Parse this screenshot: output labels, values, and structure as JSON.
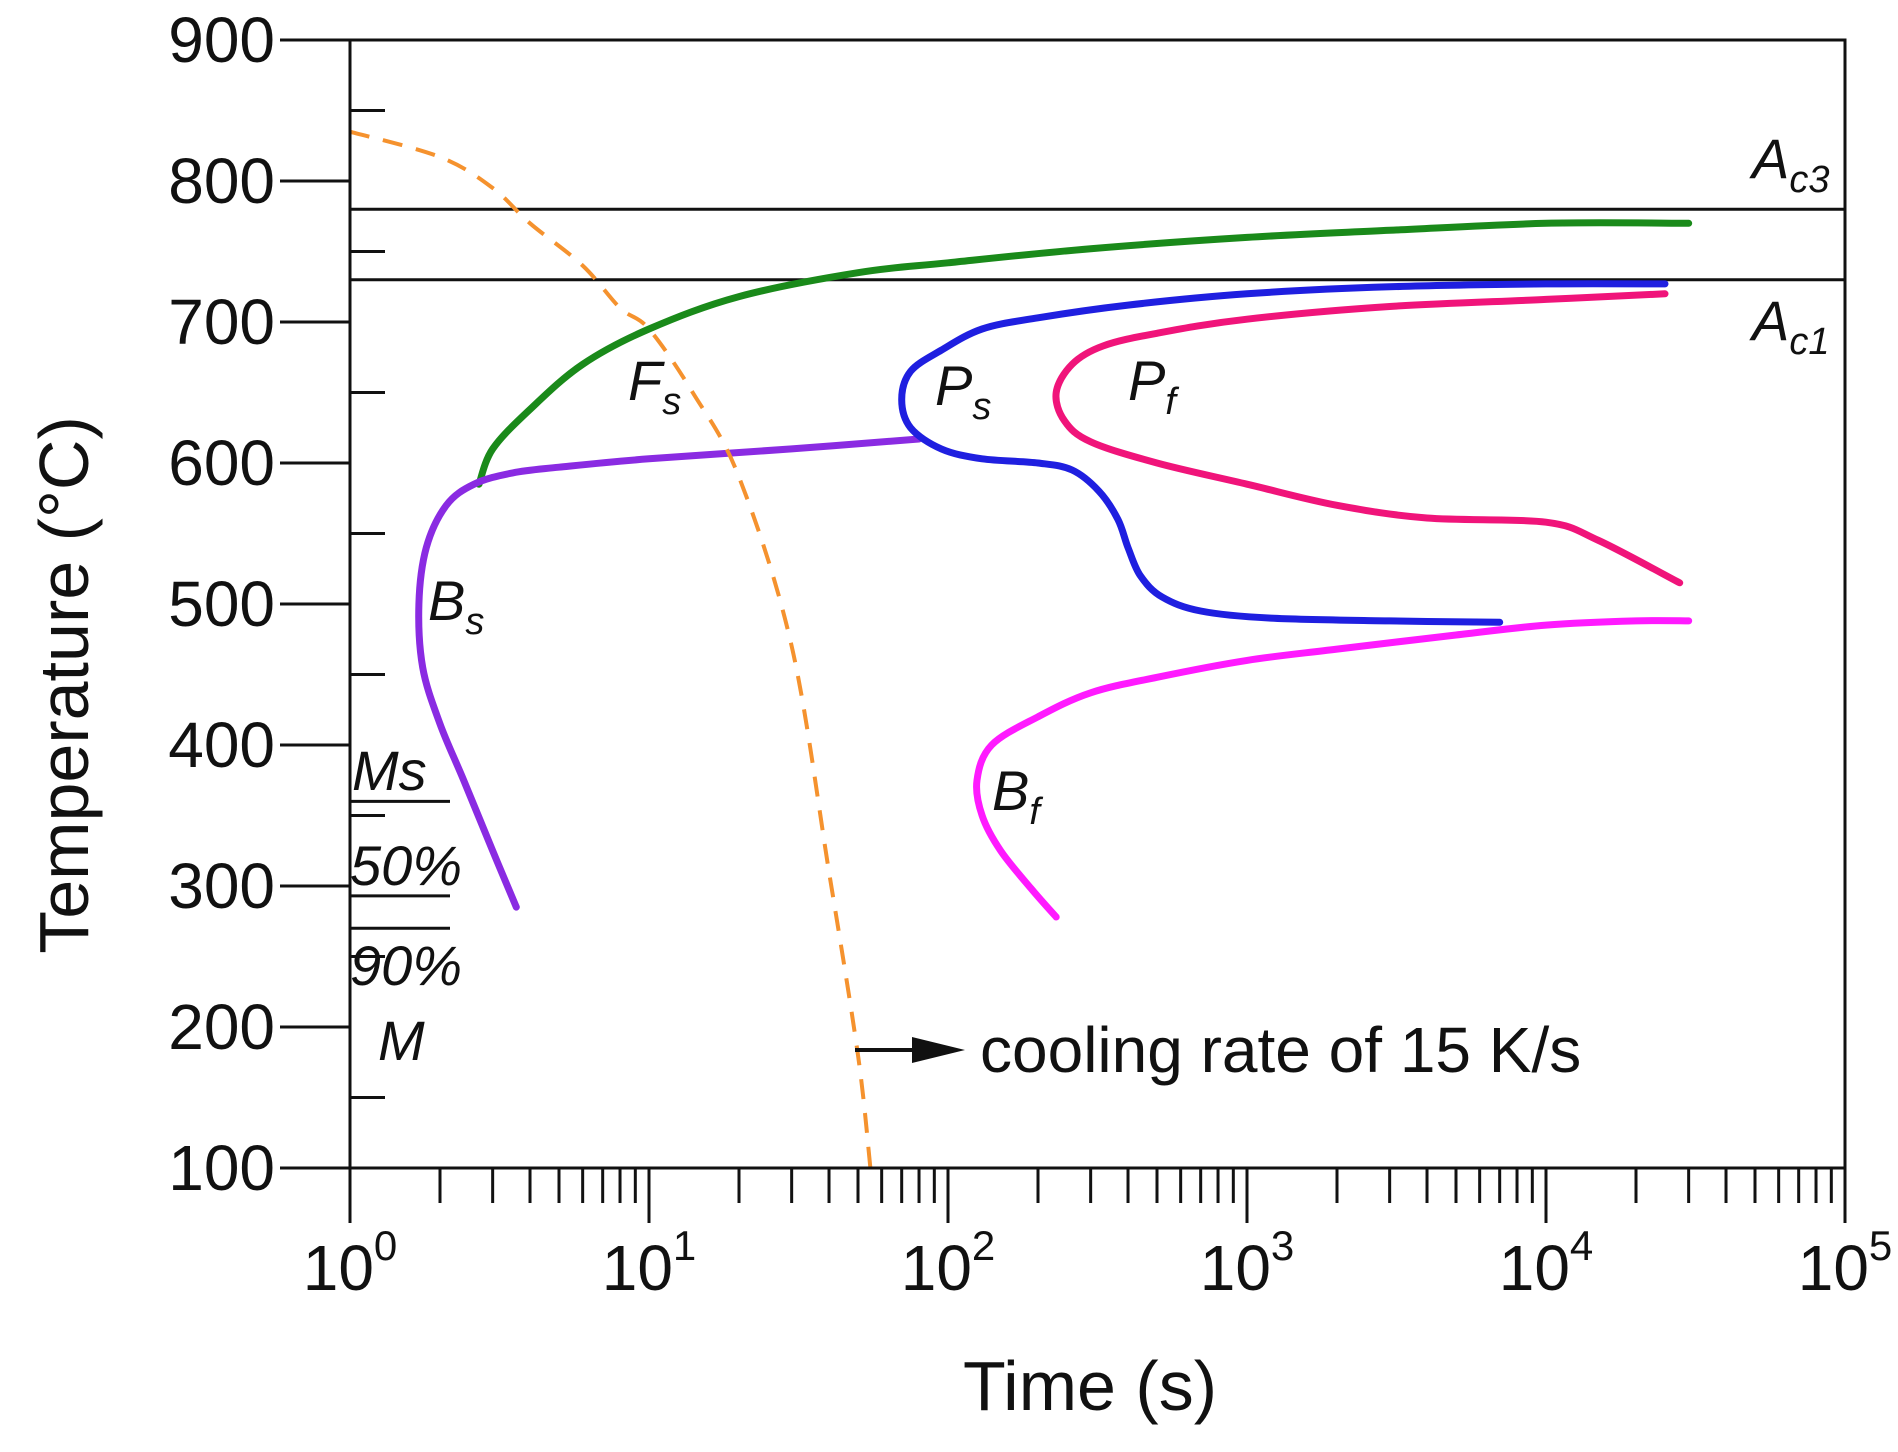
{
  "chart_data": {
    "type": "line",
    "title": "",
    "xlabel": "Time (s)",
    "ylabel": "Temperature (°C)",
    "xscale": "log",
    "xlim": [
      1,
      100000
    ],
    "ylim": [
      100,
      900
    ],
    "x_tick_labels": [
      {
        "value": 1,
        "base": "10",
        "exp": "0"
      },
      {
        "value": 10,
        "base": "10",
        "exp": "1"
      },
      {
        "value": 100,
        "base": "10",
        "exp": "2"
      },
      {
        "value": 1000,
        "base": "10",
        "exp": "3"
      },
      {
        "value": 10000,
        "base": "10",
        "exp": "4"
      },
      {
        "value": 100000,
        "base": "10",
        "exp": "5"
      }
    ],
    "y_ticks": [
      {
        "value": 100,
        "label": "100"
      },
      {
        "value": 200,
        "label": "200"
      },
      {
        "value": 300,
        "label": "300"
      },
      {
        "value": 400,
        "label": "400"
      },
      {
        "value": 500,
        "label": "500"
      },
      {
        "value": 600,
        "label": "600"
      },
      {
        "value": 700,
        "label": "700"
      },
      {
        "value": 800,
        "label": "800"
      },
      {
        "value": 900,
        "label": "900"
      }
    ],
    "hlines": [
      {
        "name": "Ac3",
        "label_main": "A",
        "label_sub": "c3",
        "value": 780
      },
      {
        "name": "Ac1",
        "label_main": "A",
        "label_sub": "c1",
        "value": 730
      }
    ],
    "martensite_lines": [
      {
        "name": "Ms",
        "label": "Ms",
        "value": 360
      },
      {
        "name": "50%",
        "label": "50%",
        "value": 293
      },
      {
        "name": "90%",
        "label": "90%",
        "value": 270
      }
    ],
    "martensite_label": "M",
    "series": [
      {
        "name": "Fs",
        "label_main": "F",
        "label_sub": "s",
        "color": "#1a8a1a",
        "points": [
          [
            2.7,
            585
          ],
          [
            3,
            610
          ],
          [
            4,
            638
          ],
          [
            6,
            670
          ],
          [
            10,
            695
          ],
          [
            20,
            718
          ],
          [
            50,
            735
          ],
          [
            100,
            742
          ],
          [
            300,
            752
          ],
          [
            1000,
            760
          ],
          [
            3000,
            765
          ],
          [
            10000,
            770
          ],
          [
            30000,
            770
          ]
        ]
      },
      {
        "name": "Bs",
        "label_main": "B",
        "label_sub": "s",
        "color": "#8a2be2",
        "points": [
          [
            3.6,
            285
          ],
          [
            3,
            325
          ],
          [
            2.4,
            375
          ],
          [
            2,
            415
          ],
          [
            1.75,
            455
          ],
          [
            1.7,
            500
          ],
          [
            1.8,
            540
          ],
          [
            2.1,
            570
          ],
          [
            2.6,
            585
          ],
          [
            3.5,
            593
          ],
          [
            5,
            597
          ],
          [
            10,
            603
          ],
          [
            30,
            610
          ],
          [
            80,
            617
          ]
        ]
      },
      {
        "name": "Ps",
        "label_main": "P",
        "label_sub": "s",
        "color": "#1f1fe0",
        "points": [
          [
            25000,
            727
          ],
          [
            10000,
            727
          ],
          [
            3000,
            725
          ],
          [
            1000,
            720
          ],
          [
            400,
            712
          ],
          [
            200,
            703
          ],
          [
            130,
            695
          ],
          [
            95,
            680
          ],
          [
            75,
            665
          ],
          [
            70,
            645
          ],
          [
            75,
            625
          ],
          [
            95,
            610
          ],
          [
            130,
            603
          ],
          [
            200,
            600
          ],
          [
            260,
            595
          ],
          [
            320,
            580
          ],
          [
            370,
            560
          ],
          [
            400,
            540
          ],
          [
            440,
            520
          ],
          [
            520,
            505
          ],
          [
            700,
            495
          ],
          [
            1200,
            490
          ],
          [
            3000,
            488
          ],
          [
            7000,
            487
          ]
        ]
      },
      {
        "name": "Pf",
        "label_main": "P",
        "label_sub": "f",
        "color": "#f0147a",
        "points": [
          [
            25000,
            720
          ],
          [
            10000,
            716
          ],
          [
            3000,
            711
          ],
          [
            1000,
            702
          ],
          [
            500,
            692
          ],
          [
            330,
            683
          ],
          [
            260,
            670
          ],
          [
            230,
            650
          ],
          [
            245,
            630
          ],
          [
            300,
            615
          ],
          [
            500,
            600
          ],
          [
            1000,
            585
          ],
          [
            2000,
            570
          ],
          [
            4000,
            561
          ],
          [
            10000,
            558
          ],
          [
            15000,
            545
          ],
          [
            28000,
            515
          ]
        ]
      },
      {
        "name": "Bf",
        "label_main": "B",
        "label_sub": "f",
        "color": "#ff1aff",
        "points": [
          [
            30000,
            488
          ],
          [
            20000,
            488
          ],
          [
            10000,
            485
          ],
          [
            5000,
            478
          ],
          [
            2000,
            468
          ],
          [
            1000,
            460
          ],
          [
            500,
            448
          ],
          [
            300,
            437
          ],
          [
            200,
            420
          ],
          [
            140,
            400
          ],
          [
            125,
            375
          ],
          [
            130,
            350
          ],
          [
            150,
            325
          ],
          [
            190,
            298
          ],
          [
            230,
            278
          ]
        ]
      },
      {
        "name": "cooling-rate",
        "color": "#f5922e",
        "dashed": true,
        "points": [
          [
            1,
            835
          ],
          [
            2,
            817
          ],
          [
            3,
            795
          ],
          [
            4,
            770
          ],
          [
            6,
            740
          ],
          [
            8,
            710
          ],
          [
            10,
            695
          ],
          [
            14,
            650
          ],
          [
            20,
            590
          ],
          [
            30,
            470
          ],
          [
            40,
            310
          ],
          [
            50,
            180
          ],
          [
            55,
            100
          ]
        ]
      }
    ],
    "annotation": {
      "text": "cooling rate of 15 K/s"
    }
  }
}
